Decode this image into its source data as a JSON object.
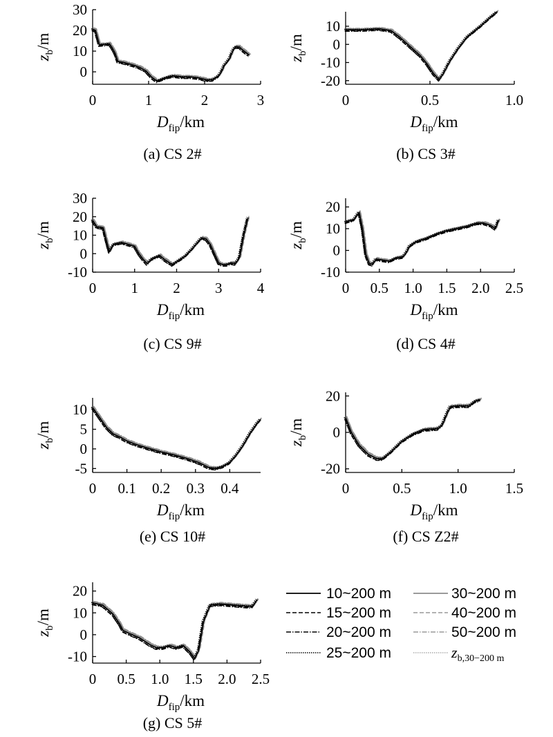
{
  "chart_data": [
    {
      "type": "line",
      "caption": "(a) CS 2#",
      "xticks": [
        0,
        1,
        2,
        3
      ],
      "xlim": [
        0,
        3
      ],
      "yticks": [
        0,
        10,
        20,
        30
      ],
      "ylim": [
        -6,
        30
      ],
      "profile": [
        [
          0.0,
          20.5
        ],
        [
          0.05,
          20.0
        ],
        [
          0.12,
          13.0
        ],
        [
          0.22,
          13.2
        ],
        [
          0.3,
          13.5
        ],
        [
          0.35,
          11.5
        ],
        [
          0.4,
          9.0
        ],
        [
          0.45,
          5.0
        ],
        [
          0.55,
          4.5
        ],
        [
          0.65,
          3.8
        ],
        [
          0.75,
          3.0
        ],
        [
          0.85,
          2.0
        ],
        [
          0.95,
          0.5
        ],
        [
          1.05,
          -2.5
        ],
        [
          1.15,
          -4.5
        ],
        [
          1.25,
          -3.5
        ],
        [
          1.35,
          -2.5
        ],
        [
          1.45,
          -2.0
        ],
        [
          1.6,
          -2.5
        ],
        [
          1.75,
          -2.5
        ],
        [
          1.9,
          -3.0
        ],
        [
          2.05,
          -4.0
        ],
        [
          2.15,
          -3.8
        ],
        [
          2.25,
          -2.0
        ],
        [
          2.3,
          0.0
        ],
        [
          2.35,
          3.0
        ],
        [
          2.45,
          6.5
        ],
        [
          2.5,
          10.0
        ],
        [
          2.55,
          12.0
        ],
        [
          2.62,
          12.0
        ],
        [
          2.68,
          10.5
        ],
        [
          2.8,
          8.0
        ]
      ],
      "xlabel": "D_fip/km",
      "ylabel": "z_b/m"
    },
    {
      "type": "line",
      "caption": "(b) CS 3#",
      "xticks": [
        0,
        0.5,
        1.0
      ],
      "xtick_labels": [
        "0",
        "0.5",
        "1.0"
      ],
      "xlim": [
        0,
        1.0
      ],
      "yticks": [
        -20,
        -10,
        0,
        10
      ],
      "ylim": [
        -22,
        18
      ],
      "profile": [
        [
          0.0,
          8.0
        ],
        [
          0.1,
          8.0
        ],
        [
          0.2,
          8.5
        ],
        [
          0.27,
          7.5
        ],
        [
          0.32,
          4.0
        ],
        [
          0.38,
          -1.0
        ],
        [
          0.44,
          -6.0
        ],
        [
          0.48,
          -10.5
        ],
        [
          0.52,
          -16.0
        ],
        [
          0.555,
          -19.5
        ],
        [
          0.58,
          -16.0
        ],
        [
          0.62,
          -9.0
        ],
        [
          0.67,
          -2.0
        ],
        [
          0.72,
          4.0
        ],
        [
          0.8,
          10.0
        ],
        [
          0.86,
          15.0
        ],
        [
          0.9,
          18.0
        ]
      ],
      "xlabel": "D_fip/km",
      "ylabel": "z_b/m"
    },
    {
      "type": "line",
      "caption": "(c) CS 9#",
      "xticks": [
        0,
        1,
        2,
        3,
        4
      ],
      "xlim": [
        0,
        4
      ],
      "yticks": [
        -10,
        0,
        10,
        20,
        30
      ],
      "ylim": [
        -10,
        30
      ],
      "profile": [
        [
          0.0,
          18.0
        ],
        [
          0.1,
          14.5
        ],
        [
          0.25,
          14.0
        ],
        [
          0.35,
          5.0
        ],
        [
          0.4,
          1.0
        ],
        [
          0.5,
          5.0
        ],
        [
          0.7,
          6.0
        ],
        [
          0.85,
          5.0
        ],
        [
          1.0,
          4.0
        ],
        [
          1.1,
          0.0
        ],
        [
          1.2,
          -3.0
        ],
        [
          1.3,
          -5.5
        ],
        [
          1.4,
          -3.0
        ],
        [
          1.5,
          -2.0
        ],
        [
          1.6,
          -1.0
        ],
        [
          1.7,
          -3.0
        ],
        [
          1.8,
          -4.5
        ],
        [
          1.9,
          -6.0
        ],
        [
          2.0,
          -4.5
        ],
        [
          2.1,
          -3.0
        ],
        [
          2.2,
          -1.5
        ],
        [
          2.35,
          2.0
        ],
        [
          2.5,
          6.0
        ],
        [
          2.6,
          8.5
        ],
        [
          2.7,
          8.0
        ],
        [
          2.8,
          5.0
        ],
        [
          2.9,
          0.0
        ],
        [
          3.0,
          -5.0
        ],
        [
          3.1,
          -6.0
        ],
        [
          3.2,
          -6.0
        ],
        [
          3.3,
          -5.0
        ],
        [
          3.4,
          -5.5
        ],
        [
          3.5,
          -2.0
        ],
        [
          3.6,
          10.0
        ],
        [
          3.7,
          19.5
        ]
      ],
      "xlabel": "D_fip/km",
      "ylabel": "z_b/m"
    },
    {
      "type": "line",
      "caption": "(d) CS 4#",
      "xticks": [
        0,
        0.5,
        1.0,
        1.5,
        2.0,
        2.5
      ],
      "xtick_labels": [
        "0",
        "0.5",
        "1.0",
        "1.5",
        "2.0",
        "2.5"
      ],
      "xlim": [
        0,
        2.5
      ],
      "yticks": [
        -10,
        0,
        10,
        20
      ],
      "ylim": [
        -10,
        24
      ],
      "profile": [
        [
          0.0,
          13.0
        ],
        [
          0.05,
          13.5
        ],
        [
          0.12,
          14.0
        ],
        [
          0.2,
          17.5
        ],
        [
          0.25,
          10.0
        ],
        [
          0.3,
          -2.0
        ],
        [
          0.35,
          -6.0
        ],
        [
          0.4,
          -6.5
        ],
        [
          0.45,
          -4.0
        ],
        [
          0.55,
          -4.5
        ],
        [
          0.65,
          -5.0
        ],
        [
          0.75,
          -3.5
        ],
        [
          0.85,
          -3.0
        ],
        [
          0.9,
          -1.0
        ],
        [
          0.95,
          2.0
        ],
        [
          1.05,
          4.0
        ],
        [
          1.2,
          5.5
        ],
        [
          1.35,
          7.5
        ],
        [
          1.5,
          9.0
        ],
        [
          1.65,
          10.0
        ],
        [
          1.8,
          11.0
        ],
        [
          1.95,
          12.5
        ],
        [
          2.05,
          12.5
        ],
        [
          2.15,
          11.5
        ],
        [
          2.22,
          10.0
        ],
        [
          2.27,
          14.0
        ]
      ],
      "xlabel": "D_fip/km",
      "ylabel": "z_b/m"
    },
    {
      "type": "line",
      "caption": "(e) CS 10#",
      "xticks": [
        0,
        0.1,
        0.2,
        0.3,
        0.4
      ],
      "xtick_labels": [
        "0",
        "0.1",
        "0.2",
        "0.3",
        "0.4"
      ],
      "xlim": [
        0,
        0.49
      ],
      "yticks": [
        -5,
        0,
        5,
        10
      ],
      "ylim": [
        -6,
        13
      ],
      "profile": [
        [
          0.0,
          10.5
        ],
        [
          0.02,
          8.0
        ],
        [
          0.04,
          5.5
        ],
        [
          0.06,
          3.8
        ],
        [
          0.08,
          3.0
        ],
        [
          0.1,
          2.0
        ],
        [
          0.13,
          1.0
        ],
        [
          0.16,
          0.2
        ],
        [
          0.2,
          -0.8
        ],
        [
          0.24,
          -1.6
        ],
        [
          0.28,
          -2.6
        ],
        [
          0.31,
          -3.5
        ],
        [
          0.34,
          -4.8
        ],
        [
          0.36,
          -5.0
        ],
        [
          0.38,
          -4.5
        ],
        [
          0.4,
          -3.5
        ],
        [
          0.42,
          -1.5
        ],
        [
          0.44,
          1.0
        ],
        [
          0.46,
          4.0
        ],
        [
          0.48,
          6.5
        ],
        [
          0.49,
          7.5
        ]
      ],
      "xlabel": "D_fip/km",
      "ylabel": "z_b/m"
    },
    {
      "type": "line",
      "caption": "(f) CS Z2#",
      "xticks": [
        0,
        0.5,
        1.0,
        1.5
      ],
      "xtick_labels": [
        "0",
        "0.5",
        "1.0",
        "1.5"
      ],
      "xlim": [
        0,
        1.5
      ],
      "yticks": [
        -20,
        0,
        20
      ],
      "ylim": [
        -22,
        22
      ],
      "profile": [
        [
          0.0,
          8.0
        ],
        [
          0.05,
          0.0
        ],
        [
          0.12,
          -7.0
        ],
        [
          0.2,
          -12.0
        ],
        [
          0.28,
          -14.5
        ],
        [
          0.33,
          -14.5
        ],
        [
          0.4,
          -11.0
        ],
        [
          0.5,
          -5.0
        ],
        [
          0.6,
          -1.0
        ],
        [
          0.7,
          1.5
        ],
        [
          0.82,
          2.0
        ],
        [
          0.86,
          4.0
        ],
        [
          0.9,
          10.0
        ],
        [
          0.93,
          14.0
        ],
        [
          1.0,
          14.5
        ],
        [
          1.1,
          14.5
        ],
        [
          1.15,
          17.0
        ],
        [
          1.2,
          18.0
        ]
      ],
      "xlabel": "D_fip/km",
      "ylabel": "z_b/m"
    },
    {
      "type": "line",
      "caption": "(g) CS 5#",
      "xticks": [
        0,
        0.5,
        1.0,
        1.5,
        2.0,
        2.5
      ],
      "xtick_labels": [
        "0",
        "0.5",
        "1.0",
        "1.5",
        "2.0",
        "2.5"
      ],
      "xlim": [
        0,
        2.5
      ],
      "yticks": [
        -10,
        0,
        10,
        20
      ],
      "ylim": [
        -13,
        24
      ],
      "profile": [
        [
          0.0,
          14.5
        ],
        [
          0.15,
          13.5
        ],
        [
          0.3,
          9.5
        ],
        [
          0.4,
          5.0
        ],
        [
          0.45,
          2.0
        ],
        [
          0.55,
          0.5
        ],
        [
          0.7,
          -1.5
        ],
        [
          0.85,
          -4.5
        ],
        [
          0.95,
          -6.0
        ],
        [
          1.05,
          -6.0
        ],
        [
          1.15,
          -5.0
        ],
        [
          1.25,
          -6.0
        ],
        [
          1.35,
          -5.0
        ],
        [
          1.45,
          -8.0
        ],
        [
          1.52,
          -11.0
        ],
        [
          1.58,
          -7.0
        ],
        [
          1.65,
          6.0
        ],
        [
          1.75,
          13.5
        ],
        [
          1.9,
          14.0
        ],
        [
          2.1,
          13.5
        ],
        [
          2.3,
          13.0
        ],
        [
          2.38,
          13.0
        ],
        [
          2.45,
          16.0
        ]
      ],
      "xlabel": "D_fip/km",
      "ylabel": "z_b/m"
    }
  ],
  "labels": {
    "x_main": "D",
    "x_sub": "fip",
    "x_unit": "/km",
    "y_main": "z",
    "y_sub": "b",
    "y_unit": "/m"
  },
  "legend": {
    "items": [
      {
        "name": "10~200 m",
        "color": "#000000",
        "dash": "",
        "width": 1.8
      },
      {
        "name": "30~200 m",
        "color": "#8c8c8c",
        "dash": "",
        "width": 1.8
      },
      {
        "name": "15~200 m",
        "color": "#000000",
        "dash": "6,3",
        "width": 1.4
      },
      {
        "name": "40~200 m",
        "color": "#999999",
        "dash": "6,3",
        "width": 1.4
      },
      {
        "name": "20~200 m",
        "color": "#000000",
        "dash": "7,2,1.5,2",
        "width": 1.4
      },
      {
        "name": "50~200 m",
        "color": "#999999",
        "dash": "7,2,1.5,2",
        "width": 1.4
      },
      {
        "name": "25~200 m",
        "color": "#000000",
        "dash": "1.5,1.5",
        "width": 1.4
      },
      {
        "name": "z",
        "sub": "b,30−200 m",
        "color": "#aaaaaa",
        "dash": "1.5,1.5",
        "width": 1.4
      }
    ]
  }
}
